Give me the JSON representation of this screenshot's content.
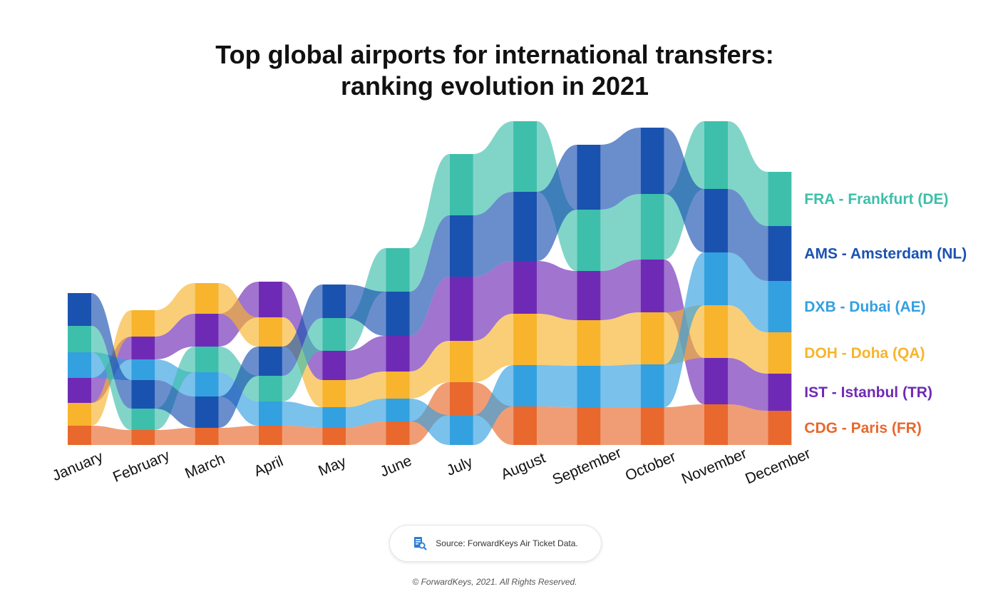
{
  "title_line1": "Top global airports for international transfers:",
  "title_line2": "ranking evolution in 2021",
  "source": "Source: ForwardKeys Air Ticket Data.",
  "copyright": "© ForwardKeys, 2021. All Rights Reserved.",
  "chart_data": {
    "type": "area",
    "subtype": "ranked-stream",
    "categories": [
      "January",
      "February",
      "March",
      "April",
      "May",
      "June",
      "July",
      "August",
      "September",
      "October",
      "November",
      "December"
    ],
    "series": [
      {
        "code": "CDG",
        "name": "CDG - Paris (FR)",
        "color": "#e8682d",
        "values": [
          27,
          21,
          24,
          27,
          25,
          33,
          46,
          54,
          53,
          53,
          57,
          48
        ]
      },
      {
        "code": "IST",
        "name": "IST - Istanbul (TR)",
        "color": "#6f2ab5",
        "values": [
          35,
          32,
          46,
          50,
          41,
          50,
          90,
          74,
          69,
          74,
          65,
          52
        ]
      },
      {
        "code": "DOH",
        "name": "DOH - Doha (QA)",
        "color": "#f8b42c",
        "values": [
          32,
          37,
          43,
          41,
          38,
          38,
          58,
          72,
          64,
          73,
          74,
          58
        ]
      },
      {
        "code": "DXB",
        "name": "DXB - Dubai (AE)",
        "color": "#33a0e0",
        "values": [
          36,
          29,
          34,
          34,
          28,
          32,
          42,
          58,
          58,
          60,
          74,
          72
        ]
      },
      {
        "code": "FRA",
        "name": "FRA - Frankfurt (DE)",
        "color": "#3dbfab",
        "values": [
          37,
          30,
          36,
          36,
          46,
          61,
          86,
          99,
          86,
          92,
          95,
          76
        ]
      },
      {
        "code": "AMS",
        "name": "AMS - Amsterdam (NL)",
        "color": "#1a52b0",
        "values": [
          46,
          40,
          44,
          41,
          47,
          62,
          86,
          97,
          91,
          93,
          89,
          77
        ]
      }
    ],
    "rank_order": [
      [
        "CDG",
        "DOH",
        "IST",
        "DXB",
        "FRA",
        "AMS"
      ],
      [
        "CDG",
        "FRA",
        "AMS",
        "DXB",
        "IST",
        "DOH"
      ],
      [
        "CDG",
        "AMS",
        "DXB",
        "FRA",
        "IST",
        "DOH"
      ],
      [
        "CDG",
        "DXB",
        "FRA",
        "AMS",
        "DOH",
        "IST"
      ],
      [
        "CDG",
        "DXB",
        "DOH",
        "IST",
        "FRA",
        "AMS"
      ],
      [
        "CDG",
        "DXB",
        "DOH",
        "IST",
        "AMS",
        "FRA"
      ],
      [
        "DXB",
        "CDG",
        "DOH",
        "IST",
        "AMS",
        "FRA"
      ],
      [
        "CDG",
        "DXB",
        "DOH",
        "IST",
        "AMS",
        "FRA"
      ],
      [
        "CDG",
        "DXB",
        "DOH",
        "IST",
        "FRA",
        "AMS"
      ],
      [
        "CDG",
        "DXB",
        "DOH",
        "IST",
        "FRA",
        "AMS"
      ],
      [
        "CDG",
        "IST",
        "DOH",
        "DXB",
        "AMS",
        "FRA"
      ],
      [
        "CDG",
        "IST",
        "DOH",
        "DXB",
        "AMS",
        "FRA"
      ]
    ],
    "legend_order": [
      "FRA",
      "AMS",
      "DXB",
      "DOH",
      "IST",
      "CDG"
    ],
    "legend_position": "right",
    "grid": false
  }
}
